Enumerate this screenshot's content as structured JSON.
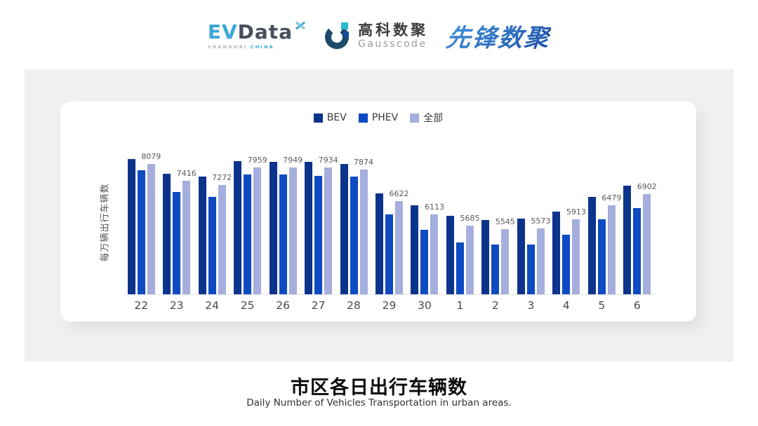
{
  "header": {
    "evdata": {
      "ev": "EV",
      "data": "Data",
      "sub1": "SHANGHAI",
      "sub2": "CHINA",
      "ev_color": "#3BA9D6",
      "data_color": "#474F5D"
    },
    "gausscode": {
      "cn": "高科数聚",
      "en": "Gausscode",
      "ring_color": "#1D4A68",
      "accent_cyan": "#2BB9CF",
      "accent_blue": "#13509E"
    },
    "pioneer": {
      "text": "先锋数聚",
      "color": "#2E6FC6"
    }
  },
  "chart_data": {
    "type": "bar",
    "title": "市区各日出行车辆数",
    "subtitle": "Daily Number of Vehicles Transportation in urban areas.",
    "ylabel": "每万辆出行车辆数",
    "xlabel": "",
    "categories": [
      "22",
      "23",
      "24",
      "25",
      "26",
      "27",
      "28",
      "29",
      "30",
      "1",
      "2",
      "3",
      "4",
      "5",
      "6"
    ],
    "series": [
      {
        "key": "bev",
        "name": "BEV",
        "color": "#0D348C",
        "values_estimated": true,
        "values": [
          8260,
          7700,
          7580,
          8180,
          8175,
          8170,
          8080,
          6940,
          6460,
          6070,
          5910,
          5940,
          6230,
          6800,
          7230
        ]
      },
      {
        "key": "phev",
        "name": "PHEV",
        "color": "#0E4AC2",
        "values_estimated": true,
        "values": [
          7850,
          6990,
          6790,
          7670,
          7665,
          7630,
          7580,
          6120,
          5510,
          5030,
          4930,
          4930,
          5330,
          5920,
          6370
        ]
      },
      {
        "key": "all",
        "name": "全部",
        "color": "#A6AEDD",
        "values_estimated": false,
        "values": [
          8079,
          7416,
          7272,
          7959,
          7949,
          7934,
          7874,
          6622,
          6113,
          5685,
          5545,
          5573,
          5913,
          6479,
          6902
        ]
      }
    ],
    "data_labels": [
      "8079",
      "7416",
      "7272",
      "7959",
      "7949",
      "7934",
      "7874",
      "6622",
      "6113",
      "5685",
      "5545",
      "5573",
      "5913",
      "6479",
      "6902"
    ],
    "data_label_series": "全部",
    "ylim": [
      3000,
      8600
    ],
    "grid": false,
    "legend_position": "top"
  }
}
